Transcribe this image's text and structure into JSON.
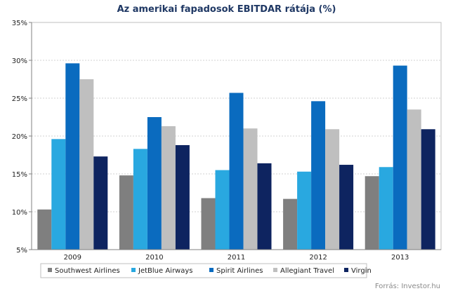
{
  "chart_data": {
    "type": "bar",
    "title": "Az amerikai fapadosok EBITDAR rátája (%)",
    "categories": [
      "2009",
      "2010",
      "2011",
      "2012",
      "2013"
    ],
    "series": [
      {
        "name": "Southwest Airlines",
        "color": "#7f7f7f",
        "values": [
          10.3,
          14.8,
          11.8,
          11.7,
          14.7
        ]
      },
      {
        "name": "JetBlue Airways",
        "color": "#29a8e0",
        "values": [
          19.6,
          18.3,
          15.5,
          15.3,
          15.9
        ]
      },
      {
        "name": "Spirit Airlines",
        "color": "#0a6bbf",
        "values": [
          29.6,
          22.5,
          25.7,
          24.6,
          29.3
        ]
      },
      {
        "name": "Allegiant Travel",
        "color": "#bfbfbf",
        "values": [
          27.5,
          21.3,
          21.0,
          20.9,
          23.5
        ]
      },
      {
        "name": "Virgin",
        "color": "#0e2460",
        "values": [
          17.3,
          18.8,
          16.4,
          16.2,
          20.9
        ]
      }
    ],
    "y_ticks": [
      "5%",
      "10%",
      "15%",
      "20%",
      "25%",
      "30%",
      "35%"
    ],
    "ylim": [
      5,
      35
    ],
    "grid": true,
    "legend_placement": "bottom"
  },
  "source": "Forrás: Investor.hu"
}
